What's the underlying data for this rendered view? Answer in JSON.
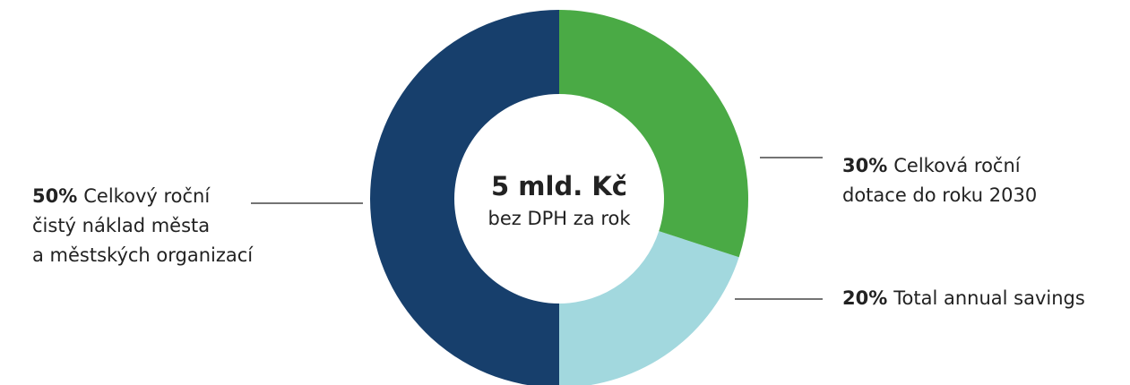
{
  "chart_data": {
    "type": "pie",
    "donut": true,
    "center_title": "5 mld. Kč",
    "center_subtitle": "bez DPH za rok",
    "categories": [
      [
        "Celková roční",
        "dotace do roku 2030"
      ],
      [
        "Total annual savings"
      ],
      [
        "Celkový roční",
        "čistý náklad města",
        "a městských organizací"
      ]
    ],
    "values": [
      30,
      20,
      50
    ],
    "value_labels": [
      "30%",
      "20%",
      "50%"
    ],
    "colors": [
      "#4aaa45",
      "#a2d8de",
      "#173f6c"
    ]
  }
}
